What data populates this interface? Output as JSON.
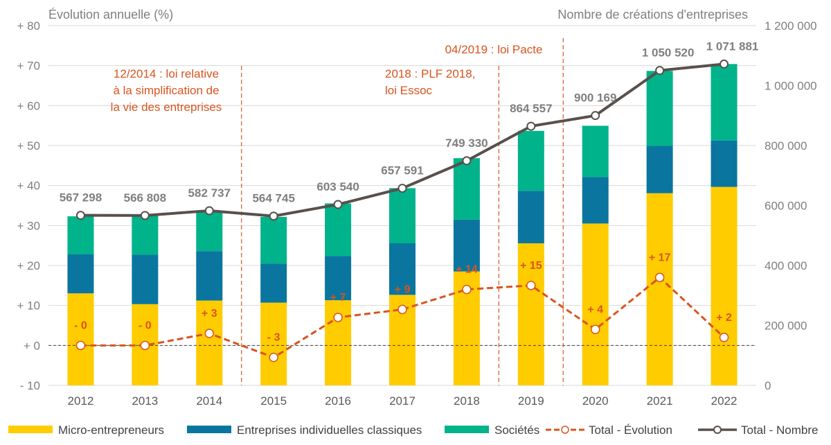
{
  "chart_data": {
    "type": "bar",
    "left_axis_title": "Évolution annuelle (%)",
    "right_axis_title": "Nombre de créations d'entreprises",
    "left_ticks": [
      "+ 80",
      "+ 70",
      "+ 60",
      "+ 50",
      "+ 40",
      "+ 30",
      "+ 20",
      "+ 10",
      "+ 0",
      "- 10"
    ],
    "right_ticks": [
      "1 200 000",
      "1 000 000",
      "800 000",
      "600 000",
      "400 000",
      "200 000",
      "0"
    ],
    "ylim_left": [
      -10,
      80
    ],
    "ylim_right": [
      0,
      1200000
    ],
    "categories": [
      "2012",
      "2013",
      "2014",
      "2015",
      "2016",
      "2017",
      "2018",
      "2019",
      "2020",
      "2021",
      "2022"
    ],
    "stacked_series": [
      {
        "name": "Micro-entrepreneurs",
        "color": "#ffcc00",
        "values": [
          307000,
          271000,
          283000,
          276000,
          284000,
          302000,
          380000,
          474000,
          540000,
          641000,
          662000
        ]
      },
      {
        "name": "Entreprises individuelles classiques",
        "color": "#0a76a0",
        "values": [
          130000,
          165000,
          165000,
          130000,
          148000,
          172000,
          173000,
          175000,
          155000,
          158000,
          155000
        ]
      },
      {
        "name": "Sociétés",
        "color": "#00b38a",
        "values": [
          127000,
          134000,
          132000,
          156000,
          175000,
          184000,
          205000,
          200000,
          171000,
          250000,
          255000
        ]
      }
    ],
    "total_number": {
      "name": "Total - Nombre",
      "color": "#58504a",
      "values": [
        567298,
        566808,
        582737,
        564745,
        603540,
        657591,
        749330,
        864557,
        900169,
        1050520,
        1071881
      ],
      "labels": [
        "567 298",
        "566 808",
        "582 737",
        "564 745",
        "603 540",
        "657 591",
        "749 330",
        "864 557",
        "900 169",
        "1 050 520",
        "1 071 881"
      ]
    },
    "total_evolution": {
      "name": "Total - Évolution",
      "color": "#d9541e",
      "values": [
        0,
        0,
        3,
        -3,
        7,
        9,
        14,
        15,
        4,
        17,
        2
      ],
      "labels": [
        "- 0",
        "- 0",
        "+ 3",
        "- 3",
        "+ 7",
        "+ 9",
        "+ 14",
        "+ 15",
        "+ 4",
        "+ 17",
        "+ 2"
      ]
    },
    "annotations": [
      {
        "lines": [
          "12/2014 : loi relative",
          "à la simplification de",
          "la vie des entreprises"
        ],
        "after_category": "2014"
      },
      {
        "lines": [
          "2018 : PLF 2018,",
          "loi Essoc"
        ],
        "after_category": "2018"
      },
      {
        "lines": [
          "04/2019 : loi Pacte"
        ],
        "after_category": "2019"
      }
    ],
    "legend": [
      "Micro-entrepreneurs",
      "Entreprises individuelles classiques",
      "Sociétés",
      "Total - Évolution",
      "Total - Nombre"
    ],
    "legend_position": "bottom",
    "grid": true
  }
}
